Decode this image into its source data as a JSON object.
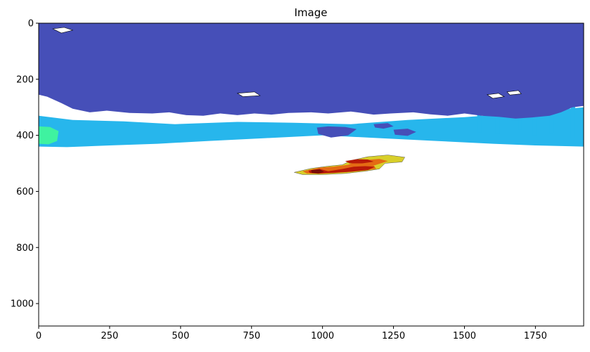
{
  "chart_data": {
    "type": "heatmap",
    "title": "Image",
    "xlabel": "",
    "ylabel": "",
    "xlim": [
      0,
      1920
    ],
    "ylim": [
      1080,
      0
    ],
    "x_ticks": [
      0,
      250,
      500,
      750,
      1000,
      1250,
      1500,
      1750
    ],
    "y_ticks": [
      0,
      200,
      400,
      600,
      800,
      1000
    ],
    "grid": false,
    "regions": [
      {
        "name": "upper band",
        "color": "#464fb8",
        "x_range": [
          0,
          1920
        ],
        "y_range": [
          0,
          360
        ]
      },
      {
        "name": "middle band",
        "color": "#27b6ec",
        "x_range": [
          0,
          1920
        ],
        "y_range": [
          330,
          440
        ]
      },
      {
        "name": "left edge",
        "color": "#3ff2a0",
        "x_range": [
          0,
          70
        ],
        "y_range": [
          370,
          430
        ]
      },
      {
        "name": "small hot cluster",
        "color": "#b81a08",
        "x_range": [
          890,
          1300
        ],
        "y_range": [
          450,
          545
        ]
      }
    ]
  },
  "colors": {
    "blue": "#464fb8",
    "cyan": "#27b6ec",
    "green": "#3ff2a0",
    "red": "#b81a08",
    "dark_red": "#7a0b06",
    "orange": "#e46b14",
    "yellow": "#d8cf2a",
    "background": "#ffffff"
  }
}
